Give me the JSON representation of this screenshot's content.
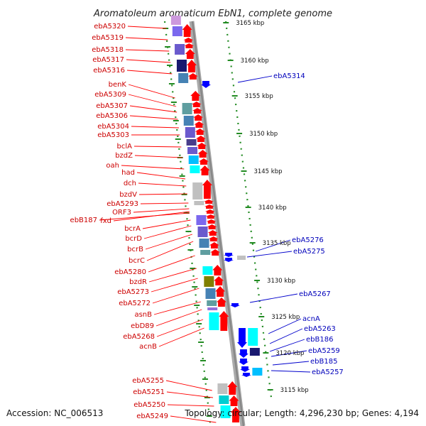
{
  "title": "Aromatoleum aromaticum EbN1, complete genome",
  "footer": {
    "accession": "Accession: NC_006513",
    "summary": "Topology: circular; Length: 4,296,230 bp; Genes: 4,194"
  },
  "colors": {
    "forward_arrow": "#ff0000",
    "reverse_arrow": "#0000ff",
    "backbone": "#999999",
    "ticks": "#228b22",
    "label_forward": "#cc0000",
    "label_reverse": "#0000bb"
  },
  "scale_labels": [
    "3165 kbp",
    "3160 kbp",
    "3155 kbp",
    "3150 kbp",
    "3145 kbp",
    "3140 kbp",
    "3135 kbp",
    "3130 kbp",
    "3125 kbp",
    "3120 kbp",
    "3115 kbp"
  ],
  "genes_left": [
    "ebA5320",
    "ebA5319",
    "ebA5318",
    "ebA5317",
    "ebA5316",
    "benK",
    "ebA5309",
    "ebA5307",
    "ebA5306",
    "ebA5304",
    "ebA5303",
    "bclA",
    "bzdZ",
    "oah",
    "had",
    "dch",
    "bzdV",
    "ebA5293",
    "ORF3",
    "fxd",
    "ebB187",
    "bcrA",
    "bcrD",
    "bcrB",
    "bcrC",
    "ebA5280",
    "bzdR",
    "ebA5273",
    "ebA5272",
    "asnB",
    "ebD89",
    "ebA5268",
    "acnB",
    "ebA5255",
    "ebA5251",
    "ebA5250",
    "ebA5249"
  ],
  "genes_right": [
    "ebA5314",
    "ebA5276",
    "ebA5275",
    "ebA5267",
    "acnA",
    "ebA5263",
    "ebB186",
    "ebA5259",
    "ebB185",
    "ebA5257"
  ]
}
